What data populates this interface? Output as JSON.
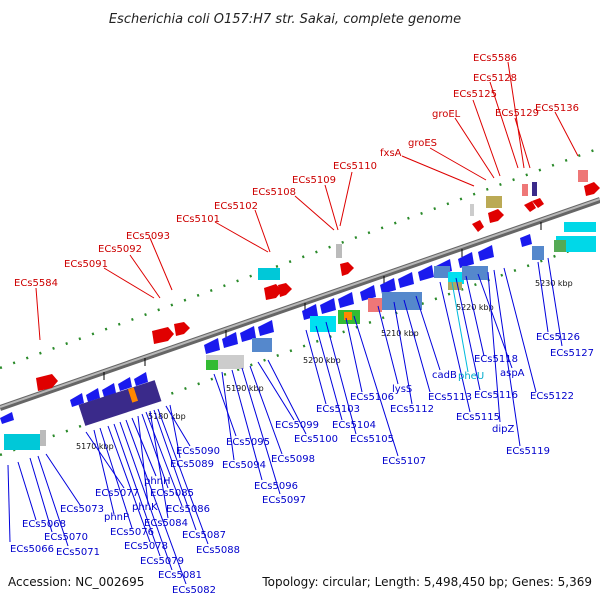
{
  "title": "Escherichia coli O157:H7 str. Sakai, complete genome",
  "footer": {
    "accession": "Accession: NC_002695",
    "topology": "Topology: circular; Length: 5,498,450 bp; Genes: 5,369"
  },
  "ticks": [
    "5170 kbp",
    "5180 kbp",
    "5190 kbp",
    "5200 kbp",
    "5210 kbp",
    "5220 kbp",
    "5230 kbp"
  ],
  "red_labels": [
    "ECs5584",
    "ECs5091",
    "ECs5092",
    "ECs5093",
    "ECs5101",
    "ECs5102",
    "ECs5108",
    "ECs5109",
    "ECs5110",
    "fxsA",
    "groES",
    "groEL",
    "ECs5125",
    "ECs5128",
    "ECs5586",
    "ECs5129",
    "ECs5136"
  ],
  "blue_labels": [
    "ECs5068",
    "ECs5066",
    "ECs5070",
    "ECs5071",
    "ECs5073",
    "ECs5077",
    "phnP",
    "ECs5076",
    "ECs5078",
    "ECs5079",
    "ECs5081",
    "ECs5082",
    "phnH",
    "phnK",
    "ECs5085",
    "ECs5086",
    "ECs5084",
    "ECs5087",
    "ECs5088",
    "ECs5090",
    "ECs5089",
    "ECs5095",
    "ECs5094",
    "ECs5096",
    "ECs5097",
    "ECs5098",
    "ECs5099",
    "ECs5100",
    "ECs5103",
    "ECs5104",
    "ECs5105",
    "ECs5106",
    "ECs5107",
    "lysS",
    "ECs5112",
    "ECs5113",
    "cadB",
    "ECs5115",
    "ECs5116",
    "ECs5118",
    "aspA",
    "dipZ",
    "ECs5119",
    "ECs5122",
    "ECs5126",
    "ECs5127"
  ],
  "cyan_labels": [
    "pheU"
  ]
}
